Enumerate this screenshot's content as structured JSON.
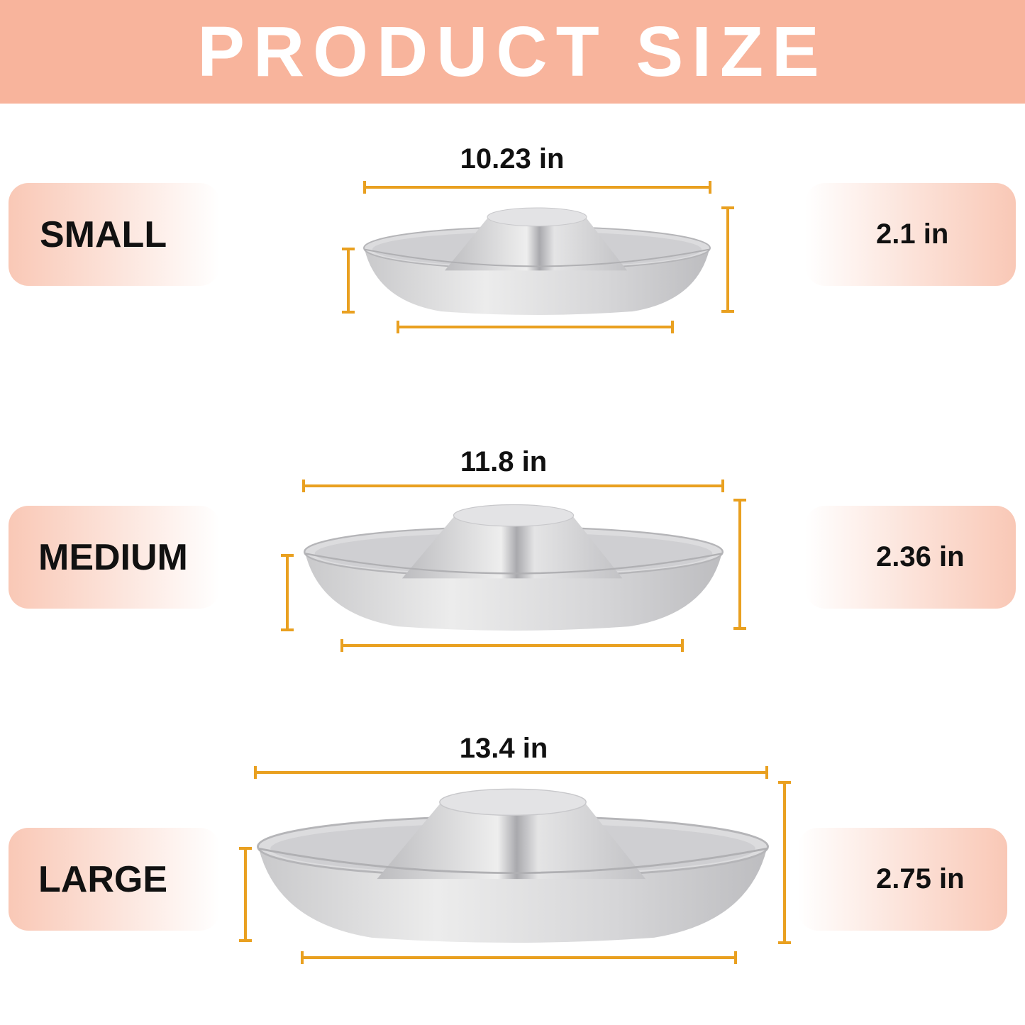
{
  "header": {
    "title": "PRODUCT SIZE"
  },
  "sizes": [
    {
      "name": "SMALL",
      "diameter": "10.23 in",
      "height": "2.1 in"
    },
    {
      "name": "MEDIUM",
      "diameter": "11.8 in",
      "height": "2.36 in"
    },
    {
      "name": "LARGE",
      "diameter": "13.4 in",
      "height": "2.75 in"
    }
  ],
  "colors": {
    "banner": "#F8B49C",
    "dimension_lines": "#E9A020",
    "pill": "#F9C8B6"
  },
  "images": {
    "product": "stainless-steel-puppy-feeding-bowl"
  }
}
